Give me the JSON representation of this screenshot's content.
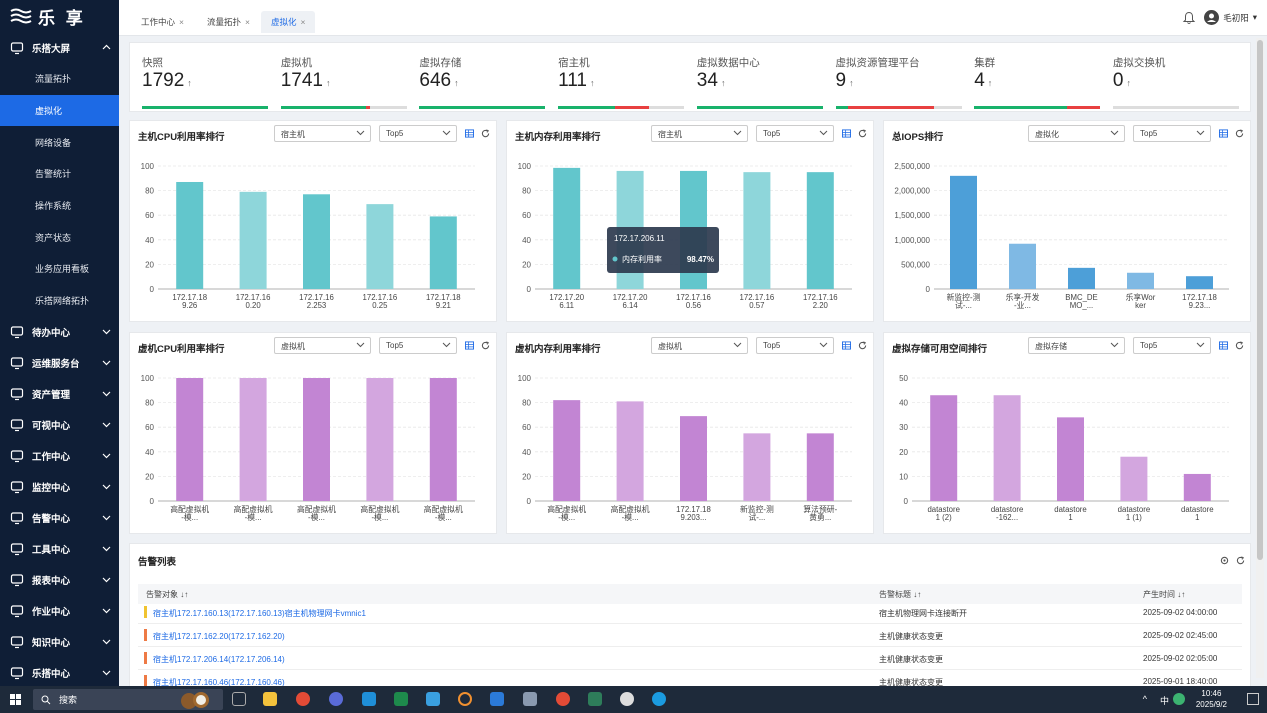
{
  "app": {
    "logo_text": "乐 享"
  },
  "sidebar": {
    "groups": [
      {
        "label": "乐搭大屏",
        "icon": "monitor-icon",
        "expanded": true,
        "items": [
          "流量拓扑",
          "虚拟化",
          "网络设备",
          "告警统计",
          "操作系统",
          "资产状态",
          "业务应用看板",
          "乐搭网络拓扑"
        ],
        "active_index": 1
      },
      {
        "label": "待办中心",
        "icon": "clock-icon"
      },
      {
        "label": "运维服务台",
        "icon": "service-icon"
      },
      {
        "label": "资产管理",
        "icon": "asset-icon"
      },
      {
        "label": "可视中心",
        "icon": "eye-icon"
      },
      {
        "label": "工作中心",
        "icon": "work-icon"
      },
      {
        "label": "监控中心",
        "icon": "monitor-icon"
      },
      {
        "label": "告警中心",
        "icon": "bell-icon"
      },
      {
        "label": "工具中心",
        "icon": "tool-icon"
      },
      {
        "label": "报表中心",
        "icon": "report-icon"
      },
      {
        "label": "作业中心",
        "icon": "job-icon"
      },
      {
        "label": "知识中心",
        "icon": "book-icon"
      },
      {
        "label": "乐搭中心",
        "icon": "cube-icon"
      }
    ]
  },
  "tabs": [
    {
      "label": "工作中心",
      "close": "×"
    },
    {
      "label": "流量拓扑",
      "close": "×"
    },
    {
      "label": "虚拟化",
      "close": "×",
      "active": true
    }
  ],
  "user": {
    "name": "毛初阳",
    "caret": "▾"
  },
  "stats": [
    {
      "label": "快照",
      "value": "1792",
      "arrow": "↑",
      "segments": [
        {
          "color": "#18b26b",
          "frac": 1.0
        }
      ]
    },
    {
      "label": "虚拟机",
      "value": "1741",
      "arrow": "↑",
      "segments": [
        {
          "color": "#18b26b",
          "frac": 0.68
        },
        {
          "color": "#e84040",
          "frac": 0.03
        }
      ]
    },
    {
      "label": "虚拟存储",
      "value": "646",
      "arrow": "↑",
      "segments": [
        {
          "color": "#18b26b",
          "frac": 1.0
        }
      ]
    },
    {
      "label": "宿主机",
      "value": "111",
      "arrow": "↑",
      "segments": [
        {
          "color": "#18b26b",
          "frac": 0.45
        },
        {
          "color": "#e84040",
          "frac": 0.27
        }
      ]
    },
    {
      "label": "虚拟数据中心",
      "value": "34",
      "arrow": "↑",
      "segments": [
        {
          "color": "#18b26b",
          "frac": 1.0
        }
      ]
    },
    {
      "label": "虚拟资源管理平台",
      "value": "9",
      "arrow": "↑",
      "segments": [
        {
          "color": "#18b26b",
          "frac": 0.1
        },
        {
          "color": "#e84040",
          "frac": 0.68
        }
      ]
    },
    {
      "label": "集群",
      "value": "4",
      "arrow": "↑",
      "segments": [
        {
          "color": "#18b26b",
          "frac": 0.74
        },
        {
          "color": "#e84040",
          "frac": 0.26
        }
      ]
    },
    {
      "label": "虚拟交换机",
      "value": "0",
      "arrow": "↑",
      "segments": []
    }
  ],
  "panels": [
    {
      "title": "主机CPU利用率排行",
      "select1": "宿主机",
      "select2": "Top5"
    },
    {
      "title": "主机内存利用率排行",
      "select1": "宿主机",
      "select2": "Top5"
    },
    {
      "title": "总IOPS排行",
      "select1": "虚拟化",
      "select2": "Top5"
    },
    {
      "title": "虚机CPU利用率排行",
      "select1": "虚拟机",
      "select2": "Top5"
    },
    {
      "title": "虚机内存利用率排行",
      "select1": "虚拟机",
      "select2": "Top5"
    },
    {
      "title": "虚拟存储可用空间排行",
      "select1": "虚拟存储",
      "select2": "Top5"
    }
  ],
  "chart_data": [
    {
      "type": "bar",
      "categories": [
        [
          "172.17.18",
          "9.26"
        ],
        [
          "172.17.16",
          "0.20"
        ],
        [
          "172.17.16",
          "2.253"
        ],
        [
          "172.17.16",
          "0.25"
        ],
        [
          "172.17.18",
          "9.21"
        ]
      ],
      "values": [
        87,
        79,
        77,
        69,
        59
      ],
      "ylim": [
        0,
        100
      ],
      "yticks": [
        "0",
        "20",
        "40",
        "60",
        "80",
        "100"
      ],
      "colors": [
        "#62c6cc",
        "#8ed6da",
        "#62c6cc",
        "#8ed6da",
        "#62c6cc"
      ]
    },
    {
      "type": "bar",
      "categories": [
        [
          "172.17.20",
          "6.11"
        ],
        [
          "172.17.20",
          "6.14"
        ],
        [
          "172.17.16",
          "0.56"
        ],
        [
          "172.17.16",
          "0.57"
        ],
        [
          "172.17.16",
          "2.20"
        ]
      ],
      "values": [
        98.47,
        96,
        96,
        95,
        95
      ],
      "ylim": [
        0,
        100
      ],
      "yticks": [
        "0",
        "20",
        "40",
        "60",
        "80",
        "100"
      ],
      "colors": [
        "#62c6cc",
        "#8ed6da",
        "#62c6cc",
        "#8ed6da",
        "#62c6cc"
      ],
      "tooltip": {
        "title": "172.17.206.11",
        "series": "内存利用率",
        "value": "98.47%"
      }
    },
    {
      "type": "bar",
      "categories": [
        [
          "新监控-测",
          "试-..."
        ],
        [
          "乐享-开发",
          "-业..."
        ],
        [
          "BMC_DE",
          "MO_..."
        ],
        [
          "乐享Wor",
          "ker"
        ],
        [
          "172.17.18",
          "9.23..."
        ]
      ],
      "values": [
        2300000,
        920000,
        430000,
        330000,
        260000
      ],
      "ylim": [
        0,
        2500000
      ],
      "yticks": [
        "0",
        "500,000",
        "1,000,000",
        "1,500,000",
        "2,000,000",
        "2,500,000"
      ],
      "colors": [
        "#4d9fd8",
        "#7fb9e4",
        "#4d9fd8",
        "#7fb9e4",
        "#4d9fd8"
      ]
    },
    {
      "type": "bar",
      "categories": [
        [
          "高配虚拟机",
          "-模..."
        ],
        [
          "高配虚拟机",
          "-模..."
        ],
        [
          "高配虚拟机",
          "-模..."
        ],
        [
          "高配虚拟机",
          "-模..."
        ],
        [
          "高配虚拟机",
          "-模..."
        ]
      ],
      "values": [
        100,
        100,
        100,
        100,
        100
      ],
      "ylim": [
        0,
        100
      ],
      "yticks": [
        "0",
        "20",
        "40",
        "60",
        "80",
        "100"
      ],
      "colors": [
        "#c285d3",
        "#d3a6df",
        "#c285d3",
        "#d3a6df",
        "#c285d3"
      ]
    },
    {
      "type": "bar",
      "categories": [
        [
          "高配虚拟机",
          "-模..."
        ],
        [
          "高配虚拟机",
          "-模..."
        ],
        [
          "172.17.18",
          "9.203..."
        ],
        [
          "新监控-测",
          "试-..."
        ],
        [
          "算法预研-",
          "黄勇..."
        ]
      ],
      "values": [
        82,
        81,
        69,
        55,
        55
      ],
      "ylim": [
        0,
        100
      ],
      "yticks": [
        "0",
        "20",
        "40",
        "60",
        "80",
        "100"
      ],
      "colors": [
        "#c285d3",
        "#d3a6df",
        "#c285d3",
        "#d3a6df",
        "#c285d3"
      ]
    },
    {
      "type": "bar",
      "categories": [
        [
          "datastore",
          "1 (2)"
        ],
        [
          "datastore",
          "-162..."
        ],
        [
          "datastore",
          "1"
        ],
        [
          "datastore",
          "1 (1)"
        ],
        [
          "datastore",
          "1"
        ]
      ],
      "values": [
        43,
        43,
        34,
        18,
        11
      ],
      "ylim": [
        0,
        50
      ],
      "yticks": [
        "0",
        "10",
        "20",
        "30",
        "40",
        "50"
      ],
      "colors": [
        "#c285d3",
        "#d3a6df",
        "#c285d3",
        "#d3a6df",
        "#c285d3"
      ]
    }
  ],
  "alerts": {
    "title": "告警列表",
    "columns": [
      "告警对象 ↓↑",
      "告警标题 ↓↑",
      "产生时间 ↓↑"
    ],
    "rows": [
      {
        "object": "宿主机172.17.160.13(172.17.160.13)宿主机物理网卡vmnic1",
        "title": "宿主机物理网卡连接断开",
        "time": "2025-09-02 04:00:00",
        "color": "#f0c330"
      },
      {
        "object": "宿主机172.17.162.20(172.17.162.20)",
        "title": "主机健康状态变更",
        "time": "2025-09-02 02:45:00",
        "color": "#ee7a45"
      },
      {
        "object": "宿主机172.17.206.14(172.17.206.14)",
        "title": "主机健康状态变更",
        "time": "2025-09-02 02:05:00",
        "color": "#ee7a45"
      },
      {
        "object": "宿主机172.17.160.46(172.17.160.46)",
        "title": "主机健康状态变更",
        "time": "2025-09-01 18:40:00",
        "color": "#ee7a45"
      }
    ]
  },
  "taskbar": {
    "search": "搜索",
    "time": "10:46",
    "date": "2025/9/2",
    "ime": "中"
  }
}
